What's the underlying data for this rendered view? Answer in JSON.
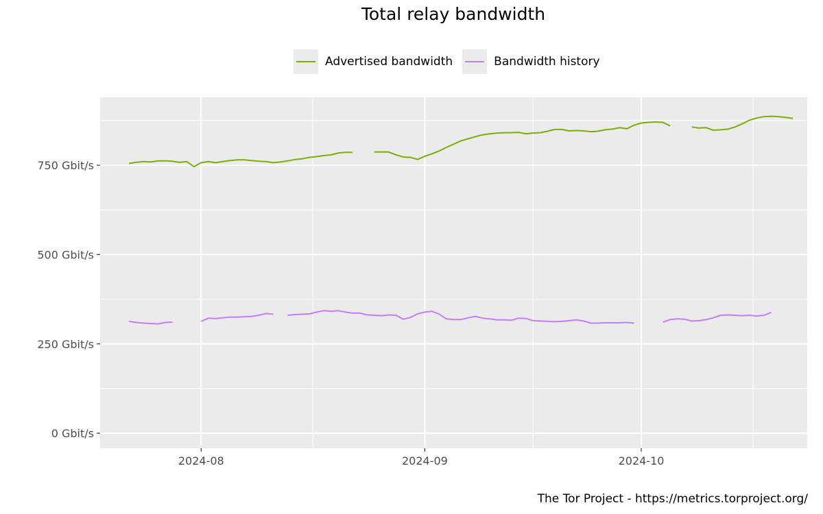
{
  "chart_data": {
    "type": "line",
    "title": "Total relay bandwidth",
    "xlabel": "",
    "ylabel": "",
    "y_unit": "Gbit/s",
    "ylim": [
      -42,
      940
    ],
    "xlim": [
      "2024-07-18",
      "2024-10-24"
    ],
    "y_ticks": [
      0,
      250,
      500,
      750
    ],
    "y_tick_labels": [
      "0 Gbit/s",
      "250 Gbit/s",
      "500 Gbit/s",
      "750 Gbit/s"
    ],
    "x_ticks": [
      "2024-08-01",
      "2024-09-01",
      "2024-10-01"
    ],
    "x_tick_labels": [
      "2024-08",
      "2024-09",
      "2024-10"
    ],
    "grid": true,
    "legend_position": "top",
    "series": [
      {
        "name": "Advertised bandwidth",
        "color": "#7cae00",
        "segments": [
          [
            [
              "2024-07-22",
              755
            ],
            [
              "2024-07-23",
              758
            ],
            [
              "2024-07-24",
              760
            ],
            [
              "2024-07-25",
              759
            ],
            [
              "2024-07-26",
              762
            ],
            [
              "2024-07-27",
              762
            ],
            [
              "2024-07-28",
              761
            ],
            [
              "2024-07-29",
              758
            ],
            [
              "2024-07-30",
              760
            ],
            [
              "2024-07-31",
              746
            ],
            [
              "2024-08-01",
              757
            ],
            [
              "2024-08-02",
              760
            ],
            [
              "2024-08-03",
              757
            ],
            [
              "2024-08-04",
              760
            ],
            [
              "2024-08-05",
              763
            ],
            [
              "2024-08-06",
              765
            ],
            [
              "2024-08-07",
              765
            ],
            [
              "2024-08-08",
              763
            ],
            [
              "2024-08-09",
              761
            ],
            [
              "2024-08-10",
              760
            ],
            [
              "2024-08-11",
              757
            ],
            [
              "2024-08-12",
              759
            ],
            [
              "2024-08-13",
              762
            ],
            [
              "2024-08-14",
              766
            ],
            [
              "2024-08-15",
              768
            ],
            [
              "2024-08-16",
              772
            ],
            [
              "2024-08-17",
              774
            ],
            [
              "2024-08-18",
              777
            ],
            [
              "2024-08-19",
              779
            ],
            [
              "2024-08-20",
              784
            ],
            [
              "2024-08-21",
              786
            ],
            [
              "2024-08-22",
              786
            ]
          ],
          [
            [
              "2024-08-25",
              787
            ],
            [
              "2024-08-26",
              787
            ],
            [
              "2024-08-27",
              787
            ],
            [
              "2024-08-28",
              779
            ],
            [
              "2024-08-29",
              773
            ],
            [
              "2024-08-30",
              772
            ],
            [
              "2024-08-31",
              766
            ],
            [
              "2024-09-01",
              775
            ],
            [
              "2024-09-02",
              782
            ],
            [
              "2024-09-03",
              790
            ],
            [
              "2024-09-04",
              800
            ],
            [
              "2024-09-05",
              809
            ],
            [
              "2024-09-06",
              818
            ],
            [
              "2024-09-07",
              824
            ],
            [
              "2024-09-08",
              830
            ],
            [
              "2024-09-09",
              835
            ],
            [
              "2024-09-10",
              838
            ],
            [
              "2024-09-11",
              840
            ],
            [
              "2024-09-12",
              841
            ],
            [
              "2024-09-13",
              841
            ],
            [
              "2024-09-14",
              842
            ],
            [
              "2024-09-15",
              838
            ],
            [
              "2024-09-16",
              840
            ],
            [
              "2024-09-17",
              841
            ],
            [
              "2024-09-18",
              845
            ],
            [
              "2024-09-19",
              850
            ],
            [
              "2024-09-20",
              850
            ],
            [
              "2024-09-21",
              846
            ],
            [
              "2024-09-22",
              847
            ],
            [
              "2024-09-23",
              846
            ],
            [
              "2024-09-24",
              844
            ],
            [
              "2024-09-25",
              845
            ],
            [
              "2024-09-26",
              849
            ],
            [
              "2024-09-27",
              851
            ],
            [
              "2024-09-28",
              855
            ],
            [
              "2024-09-29",
              852
            ],
            [
              "2024-09-30",
              862
            ],
            [
              "2024-10-01",
              868
            ],
            [
              "2024-10-02",
              870
            ],
            [
              "2024-10-03",
              871
            ],
            [
              "2024-10-04",
              870
            ],
            [
              "2024-10-05",
              860
            ]
          ],
          [
            [
              "2024-10-08",
              857
            ],
            [
              "2024-10-09",
              854
            ],
            [
              "2024-10-10",
              855
            ],
            [
              "2024-10-11",
              848
            ],
            [
              "2024-10-12",
              849
            ],
            [
              "2024-10-13",
              851
            ],
            [
              "2024-10-14",
              857
            ],
            [
              "2024-10-15",
              866
            ],
            [
              "2024-10-16",
              876
            ],
            [
              "2024-10-17",
              882
            ],
            [
              "2024-10-18",
              886
            ],
            [
              "2024-10-19",
              887
            ],
            [
              "2024-10-20",
              886
            ],
            [
              "2024-10-21",
              884
            ],
            [
              "2024-10-22",
              881
            ]
          ]
        ]
      },
      {
        "name": "Bandwidth history",
        "color": "#c77cff",
        "segments": [
          [
            [
              "2024-07-22",
              313
            ],
            [
              "2024-07-23",
              310
            ],
            [
              "2024-07-24",
              308
            ],
            [
              "2024-07-25",
              307
            ],
            [
              "2024-07-26",
              306
            ],
            [
              "2024-07-27",
              310
            ],
            [
              "2024-07-28",
              311
            ]
          ],
          [
            [
              "2024-08-01",
              313
            ],
            [
              "2024-08-02",
              322
            ],
            [
              "2024-08-03",
              321
            ],
            [
              "2024-08-04",
              323
            ],
            [
              "2024-08-05",
              325
            ],
            [
              "2024-08-06",
              325
            ],
            [
              "2024-08-07",
              326
            ],
            [
              "2024-08-08",
              327
            ],
            [
              "2024-08-09",
              330
            ],
            [
              "2024-08-10",
              335
            ],
            [
              "2024-08-11",
              333
            ]
          ],
          [
            [
              "2024-08-13",
              330
            ],
            [
              "2024-08-14",
              332
            ],
            [
              "2024-08-15",
              333
            ],
            [
              "2024-08-16",
              334
            ],
            [
              "2024-08-17",
              339
            ],
            [
              "2024-08-18",
              343
            ],
            [
              "2024-08-19",
              341
            ],
            [
              "2024-08-20",
              343
            ],
            [
              "2024-08-21",
              339
            ],
            [
              "2024-08-22",
              336
            ],
            [
              "2024-08-23",
              336
            ],
            [
              "2024-08-24",
              331
            ],
            [
              "2024-08-25",
              330
            ],
            [
              "2024-08-26",
              329
            ],
            [
              "2024-08-27",
              331
            ],
            [
              "2024-08-28",
              330
            ],
            [
              "2024-08-29",
              319
            ],
            [
              "2024-08-30",
              324
            ],
            [
              "2024-08-31",
              334
            ],
            [
              "2024-09-01",
              339
            ],
            [
              "2024-09-02",
              341
            ],
            [
              "2024-09-03",
              333
            ],
            [
              "2024-09-04",
              320
            ],
            [
              "2024-09-05",
              318
            ],
            [
              "2024-09-06",
              318
            ],
            [
              "2024-09-07",
              323
            ],
            [
              "2024-09-08",
              327
            ],
            [
              "2024-09-09",
              322
            ],
            [
              "2024-09-10",
              320
            ],
            [
              "2024-09-11",
              317
            ],
            [
              "2024-09-12",
              317
            ],
            [
              "2024-09-13",
              316
            ],
            [
              "2024-09-14",
              322
            ],
            [
              "2024-09-15",
              321
            ],
            [
              "2024-09-16",
              315
            ],
            [
              "2024-09-17",
              314
            ],
            [
              "2024-09-18",
              313
            ],
            [
              "2024-09-19",
              312
            ],
            [
              "2024-09-20",
              313
            ],
            [
              "2024-09-21",
              315
            ],
            [
              "2024-09-22",
              317
            ],
            [
              "2024-09-23",
              314
            ],
            [
              "2024-09-24",
              308
            ],
            [
              "2024-09-25",
              308
            ],
            [
              "2024-09-26",
              309
            ],
            [
              "2024-09-27",
              309
            ],
            [
              "2024-09-28",
              309
            ],
            [
              "2024-09-29",
              310
            ],
            [
              "2024-09-30",
              308
            ]
          ],
          [
            [
              "2024-10-04",
              311
            ],
            [
              "2024-10-05",
              318
            ],
            [
              "2024-10-06",
              320
            ],
            [
              "2024-10-07",
              319
            ],
            [
              "2024-10-08",
              314
            ],
            [
              "2024-10-09",
              315
            ],
            [
              "2024-10-10",
              318
            ],
            [
              "2024-10-11",
              323
            ],
            [
              "2024-10-12",
              330
            ],
            [
              "2024-10-13",
              331
            ],
            [
              "2024-10-14",
              330
            ],
            [
              "2024-10-15",
              329
            ],
            [
              "2024-10-16",
              330
            ],
            [
              "2024-10-17",
              328
            ],
            [
              "2024-10-18",
              330
            ],
            [
              "2024-10-19",
              338
            ]
          ]
        ]
      }
    ]
  },
  "caption": "The Tor Project - https://metrics.torproject.org/"
}
